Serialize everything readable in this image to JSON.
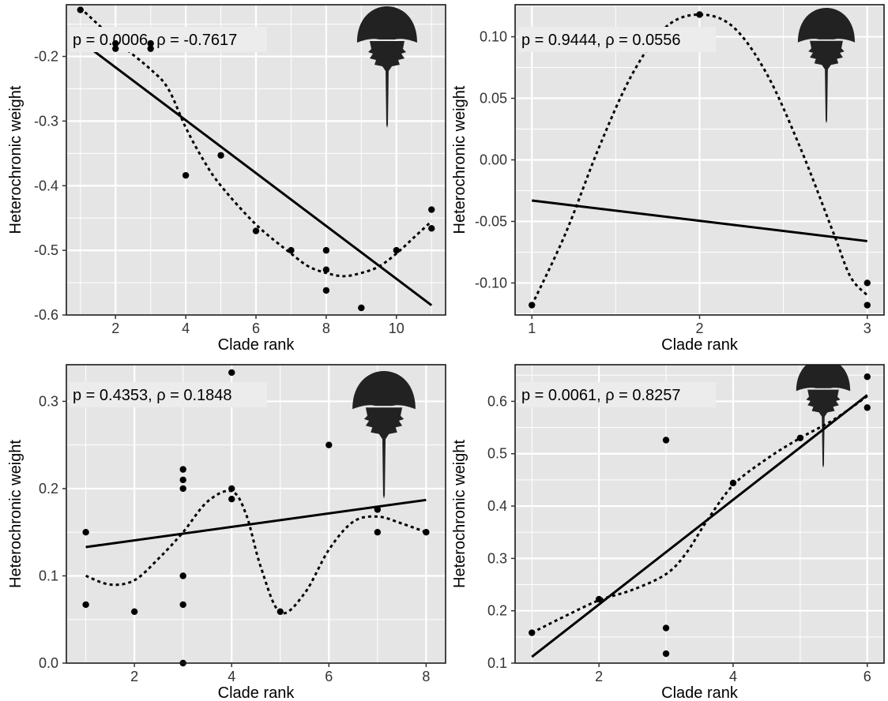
{
  "colors": {
    "panel_background": "#e5e5e5",
    "grid": "#ffffff",
    "marks": "#000000",
    "silhouette": "#222222",
    "annotation_box": "#ececec"
  },
  "chart_data": [
    {
      "id": "top-left",
      "type": "scatter",
      "xlabel": "Clade rank",
      "ylabel": "Heterochronic weight",
      "annotation": "p = 0.0006, ρ = -0.7617",
      "xlim": [
        0.6,
        11.4
      ],
      "ylim": [
        -0.6,
        -0.12
      ],
      "xticks": [
        2,
        4,
        6,
        8,
        10
      ],
      "yticks": [
        -0.6,
        -0.5,
        -0.4,
        -0.3,
        -0.2
      ],
      "xtick_labels": [
        "2",
        "4",
        "6",
        "8",
        "10"
      ],
      "ytick_labels": [
        "-0.6",
        "-0.5",
        "-0.4",
        "-0.3",
        "-0.2"
      ],
      "points": [
        [
          1,
          -0.128
        ],
        [
          2,
          -0.18
        ],
        [
          2,
          -0.188
        ],
        [
          3,
          -0.18
        ],
        [
          3,
          -0.188
        ],
        [
          4,
          -0.384
        ],
        [
          5,
          -0.353
        ],
        [
          6,
          -0.47
        ],
        [
          7,
          -0.5
        ],
        [
          8,
          -0.5
        ],
        [
          8,
          -0.53
        ],
        [
          8,
          -0.562
        ],
        [
          9,
          -0.589
        ],
        [
          10,
          -0.5
        ],
        [
          11,
          -0.437
        ],
        [
          11,
          -0.466
        ]
      ],
      "fit_line": [
        [
          1,
          -0.176
        ],
        [
          11,
          -0.585
        ]
      ],
      "smooth_curve": [
        [
          1,
          -0.125
        ],
        [
          2,
          -0.175
        ],
        [
          3,
          -0.22
        ],
        [
          3.5,
          -0.25
        ],
        [
          4,
          -0.31
        ],
        [
          4.5,
          -0.36
        ],
        [
          5,
          -0.4
        ],
        [
          6,
          -0.46
        ],
        [
          7,
          -0.505
        ],
        [
          7.5,
          -0.525
        ],
        [
          8,
          -0.535
        ],
        [
          8.5,
          -0.54
        ],
        [
          9,
          -0.535
        ],
        [
          9.5,
          -0.525
        ],
        [
          10,
          -0.505
        ],
        [
          10.5,
          -0.48
        ],
        [
          11,
          -0.455
        ]
      ],
      "silhouette": "horseshoe-crab-icon"
    },
    {
      "id": "top-right",
      "type": "scatter",
      "xlabel": "Clade rank",
      "ylabel": "Heterochronic weight",
      "annotation": "p = 0.9444, ρ = 0.0556",
      "xlim": [
        0.9,
        3.1
      ],
      "ylim": [
        -0.126,
        0.126
      ],
      "xticks": [
        1,
        2,
        3
      ],
      "yticks": [
        -0.1,
        -0.05,
        0.0,
        0.05,
        0.1
      ],
      "xtick_labels": [
        "1",
        "2",
        "3"
      ],
      "ytick_labels": [
        "-0.10",
        "-0.05",
        "0.00",
        "0.05",
        "0.10"
      ],
      "points": [
        [
          1,
          -0.118
        ],
        [
          2,
          0.118
        ],
        [
          3,
          -0.1
        ],
        [
          3,
          -0.118
        ]
      ],
      "fit_line": [
        [
          1,
          -0.033
        ],
        [
          3,
          -0.066
        ]
      ],
      "smooth_curve": [
        [
          1,
          -0.118
        ],
        [
          1.2,
          -0.06
        ],
        [
          1.4,
          0.01
        ],
        [
          1.6,
          0.07
        ],
        [
          1.8,
          0.108
        ],
        [
          2,
          0.118
        ],
        [
          2.2,
          0.108
        ],
        [
          2.4,
          0.07
        ],
        [
          2.6,
          0.01
        ],
        [
          2.8,
          -0.06
        ],
        [
          2.9,
          -0.095
        ],
        [
          3,
          -0.11
        ]
      ],
      "silhouette": "horseshoe-crab-icon"
    },
    {
      "id": "bottom-left",
      "type": "scatter",
      "xlabel": "Clade rank",
      "ylabel": "Heterochronic weight",
      "annotation": "p = 0.4353, ρ = 0.1848",
      "xlim": [
        0.6,
        8.4
      ],
      "ylim": [
        0.0,
        0.342
      ],
      "xticks": [
        2,
        4,
        6,
        8
      ],
      "yticks": [
        0.0,
        0.1,
        0.2,
        0.3
      ],
      "xtick_labels": [
        "2",
        "4",
        "6",
        "8"
      ],
      "ytick_labels": [
        "0.0",
        "0.1",
        "0.2",
        "0.3"
      ],
      "points": [
        [
          1,
          0.15
        ],
        [
          1,
          0.067
        ],
        [
          2,
          0.059
        ],
        [
          3,
          0.222
        ],
        [
          3,
          0.21
        ],
        [
          3,
          0.2
        ],
        [
          3,
          0.1
        ],
        [
          3,
          0.067
        ],
        [
          3,
          0.0
        ],
        [
          4,
          0.333
        ],
        [
          4,
          0.2
        ],
        [
          4,
          0.188
        ],
        [
          5,
          0.059
        ],
        [
          6,
          0.25
        ],
        [
          7,
          0.176
        ],
        [
          7,
          0.15
        ],
        [
          8,
          0.15
        ]
      ],
      "fit_line": [
        [
          1,
          0.133
        ],
        [
          8,
          0.187
        ]
      ],
      "smooth_curve": [
        [
          1,
          0.1
        ],
        [
          1.5,
          0.09
        ],
        [
          2,
          0.095
        ],
        [
          2.5,
          0.12
        ],
        [
          3,
          0.15
        ],
        [
          3.5,
          0.185
        ],
        [
          4,
          0.197
        ],
        [
          4.3,
          0.17
        ],
        [
          4.6,
          0.11
        ],
        [
          5,
          0.058
        ],
        [
          5.5,
          0.08
        ],
        [
          6,
          0.13
        ],
        [
          6.5,
          0.162
        ],
        [
          7,
          0.168
        ],
        [
          7.5,
          0.16
        ],
        [
          8,
          0.15
        ]
      ],
      "silhouette": "horseshoe-crab-icon"
    },
    {
      "id": "bottom-right",
      "type": "scatter",
      "xlabel": "Clade rank",
      "ylabel": "Heterochronic weight",
      "annotation": "p = 0.0061, ρ = 0.8257",
      "xlim": [
        0.75,
        6.25
      ],
      "ylim": [
        0.1,
        0.67
      ],
      "xticks": [
        2,
        4,
        6
      ],
      "yticks": [
        0.1,
        0.2,
        0.3,
        0.4,
        0.5,
        0.6
      ],
      "xtick_labels": [
        "2",
        "4",
        "6"
      ],
      "ytick_labels": [
        "0.1",
        "0.2",
        "0.3",
        "0.4",
        "0.5",
        "0.6"
      ],
      "points": [
        [
          1,
          0.158
        ],
        [
          2,
          0.222
        ],
        [
          3,
          0.526
        ],
        [
          3,
          0.167
        ],
        [
          3,
          0.118
        ],
        [
          4,
          0.444
        ],
        [
          5,
          0.53
        ],
        [
          6,
          0.647
        ],
        [
          6,
          0.588
        ]
      ],
      "fit_line": [
        [
          1,
          0.112
        ],
        [
          6,
          0.612
        ]
      ],
      "smooth_curve": [
        [
          1,
          0.158
        ],
        [
          1.5,
          0.19
        ],
        [
          2,
          0.22
        ],
        [
          2.5,
          0.24
        ],
        [
          3,
          0.27
        ],
        [
          3.3,
          0.31
        ],
        [
          3.6,
          0.37
        ],
        [
          4,
          0.44
        ],
        [
          4.5,
          0.49
        ],
        [
          5,
          0.53
        ],
        [
          5.5,
          0.565
        ],
        [
          6,
          0.61
        ]
      ],
      "silhouette": "horseshoe-crab-icon"
    }
  ]
}
